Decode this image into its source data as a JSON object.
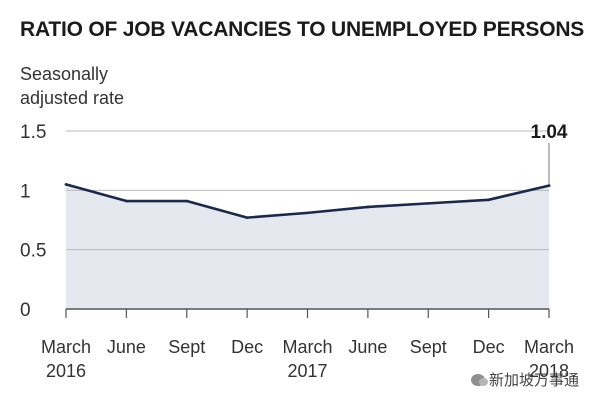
{
  "chart_data": {
    "type": "area",
    "title": "RATIO OF JOB VACANCIES TO UNEMPLOYED PERSONS",
    "ylabel": "Seasonally adjusted rate",
    "ylim": [
      0,
      1.5
    ],
    "yticks": [
      "1.5",
      "1",
      "0.5",
      "0"
    ],
    "ytick_values": [
      1.5,
      1,
      0.5,
      0
    ],
    "categories": [
      "March",
      "June",
      "Sept",
      "Dec",
      "March",
      "June",
      "Sept",
      "Dec",
      "March"
    ],
    "year_labels": [
      {
        "index": 0,
        "label": "2016"
      },
      {
        "index": 4,
        "label": "2017"
      },
      {
        "index": 8,
        "label": "2018"
      }
    ],
    "series": [
      {
        "values": [
          1.05,
          0.91,
          0.91,
          0.77,
          0.81,
          0.86,
          0.89,
          0.92,
          1.04
        ]
      }
    ],
    "annotation": {
      "index": 8,
      "label": "1.04"
    },
    "grid": true,
    "colors": {
      "line": "#1c2a4a",
      "fill": "#e6e8ef",
      "grid": "#b8b8b8",
      "axis": "#555555"
    }
  },
  "watermark": {
    "text": "新加坡万事通",
    "icon": "wechat-icon"
  }
}
